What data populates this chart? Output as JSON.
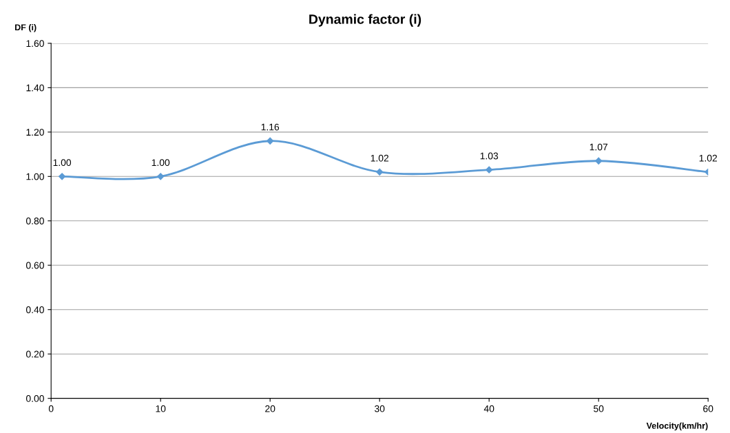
{
  "chart_data": {
    "type": "line",
    "title": "Dynamic factor (i)",
    "xlabel": "Velocity(km/hr)",
    "ylabel": "DF (i)",
    "x": [
      1,
      10,
      20,
      30,
      40,
      50,
      60
    ],
    "series": [
      {
        "color": "#5b9bd5",
        "values": [
          1.0,
          1.0,
          1.16,
          1.02,
          1.03,
          1.07,
          1.02
        ],
        "value_labels": [
          "1.00",
          "1.00",
          "1.16",
          "1.02",
          "1.03",
          "1.07",
          "1.02"
        ]
      }
    ],
    "xlim": [
      0,
      60
    ],
    "xticks": [
      0,
      10,
      20,
      30,
      40,
      50,
      60
    ],
    "ylim": [
      0,
      1.6
    ],
    "yticks": [
      {
        "value": 0,
        "label": "0.00"
      },
      {
        "value": 0.2,
        "label": "0.20"
      },
      {
        "value": 0.4,
        "label": "0.40"
      },
      {
        "value": 0.6,
        "label": "0.60"
      },
      {
        "value": 0.8,
        "label": "0.80"
      },
      {
        "value": 1.0,
        "label": "1.00"
      },
      {
        "value": 1.2,
        "label": "1.20"
      },
      {
        "value": 1.4,
        "label": "1.40"
      },
      {
        "value": 1.6,
        "label": "1.60"
      }
    ],
    "grid": "y",
    "marker": "diamond",
    "line_style": "solid"
  }
}
